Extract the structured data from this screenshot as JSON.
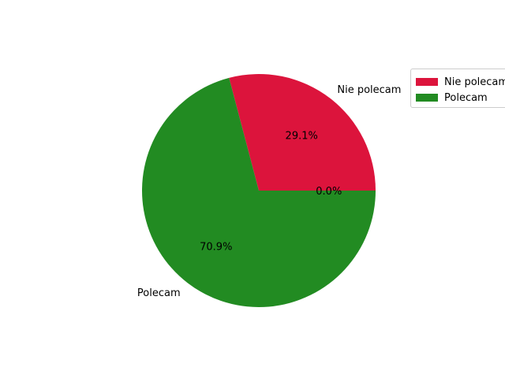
{
  "chart_data": {
    "type": "pie",
    "categories": [
      "Nie polecam",
      "Polecam",
      ""
    ],
    "values": [
      29.1,
      70.9,
      0.0
    ],
    "percent_labels": [
      "29.1%",
      "70.9%",
      "0.0%"
    ],
    "colors": [
      "#dc143c",
      "#228b22",
      "#1f77b4"
    ],
    "title": "",
    "legend": {
      "placement": "top-right",
      "entries": [
        "Nie polecam",
        "Polecam"
      ]
    }
  }
}
